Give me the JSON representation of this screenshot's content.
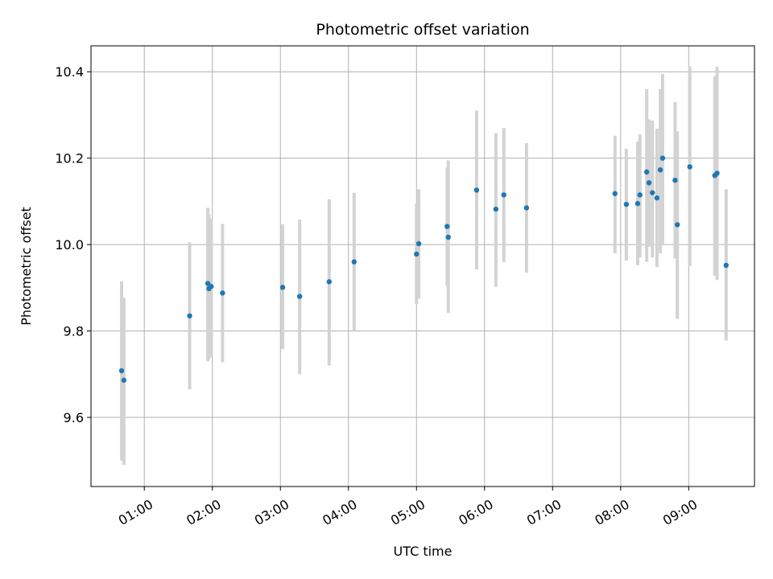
{
  "chart_data": {
    "type": "scatter",
    "title": "Photometric offset variation",
    "xlabel": "UTC time",
    "ylabel": "Photometric offset",
    "x_axis_kind": "time",
    "xlim": [
      "00:13",
      "09:58"
    ],
    "ylim": [
      9.44,
      10.46
    ],
    "x_ticks": [
      "01:00",
      "02:00",
      "03:00",
      "04:00",
      "05:00",
      "06:00",
      "07:00",
      "08:00",
      "09:00"
    ],
    "y_ticks": [
      9.6,
      9.8,
      10.0,
      10.2,
      10.4
    ],
    "y_tick_labels": [
      "9.6",
      "9.8",
      "10.0",
      "10.2",
      "10.4"
    ],
    "grid": true,
    "marker_color": "#1f77b4",
    "errorbar_color": "#d3d3d3",
    "series": [
      {
        "points": [
          {
            "t": "00:40",
            "y": 9.708,
            "lo": 9.5,
            "hi": 9.915
          },
          {
            "t": "00:42",
            "y": 9.686,
            "lo": 9.49,
            "hi": 9.877
          },
          {
            "t": "01:40",
            "y": 9.835,
            "lo": 9.665,
            "hi": 10.005
          },
          {
            "t": "01:56",
            "y": 9.91,
            "lo": 9.73,
            "hi": 10.085
          },
          {
            "t": "01:57",
            "y": 9.898,
            "lo": 9.735,
            "hi": 10.07
          },
          {
            "t": "01:59",
            "y": 9.903,
            "lo": 9.74,
            "hi": 10.06
          },
          {
            "t": "02:09",
            "y": 9.888,
            "lo": 9.728,
            "hi": 10.048
          },
          {
            "t": "03:02",
            "y": 9.901,
            "lo": 9.758,
            "hi": 10.047
          },
          {
            "t": "03:17",
            "y": 9.88,
            "lo": 9.7,
            "hi": 10.058
          },
          {
            "t": "03:43",
            "y": 9.914,
            "lo": 9.72,
            "hi": 10.105
          },
          {
            "t": "04:05",
            "y": 9.96,
            "lo": 9.8,
            "hi": 10.12
          },
          {
            "t": "05:00",
            "y": 9.978,
            "lo": 9.862,
            "hi": 10.095
          },
          {
            "t": "05:02",
            "y": 10.002,
            "lo": 9.875,
            "hi": 10.128
          },
          {
            "t": "05:27",
            "y": 10.042,
            "lo": 9.905,
            "hi": 10.178
          },
          {
            "t": "05:28",
            "y": 10.017,
            "lo": 9.842,
            "hi": 10.195
          },
          {
            "t": "05:53",
            "y": 10.126,
            "lo": 9.942,
            "hi": 10.31
          },
          {
            "t": "06:10",
            "y": 10.082,
            "lo": 9.902,
            "hi": 10.258
          },
          {
            "t": "06:17",
            "y": 10.115,
            "lo": 9.96,
            "hi": 10.27
          },
          {
            "t": "06:37",
            "y": 10.085,
            "lo": 9.935,
            "hi": 10.235
          },
          {
            "t": "07:55",
            "y": 10.118,
            "lo": 9.98,
            "hi": 10.252
          },
          {
            "t": "08:05",
            "y": 10.093,
            "lo": 9.963,
            "hi": 10.222
          },
          {
            "t": "08:15",
            "y": 10.095,
            "lo": 9.952,
            "hi": 10.238
          },
          {
            "t": "08:17",
            "y": 10.115,
            "lo": 9.97,
            "hi": 10.255
          },
          {
            "t": "08:23",
            "y": 10.168,
            "lo": 9.96,
            "hi": 10.36
          },
          {
            "t": "08:25",
            "y": 10.143,
            "lo": 9.995,
            "hi": 10.29
          },
          {
            "t": "08:28",
            "y": 10.12,
            "lo": 9.97,
            "hi": 10.287
          },
          {
            "t": "08:32",
            "y": 10.108,
            "lo": 9.948,
            "hi": 10.268
          },
          {
            "t": "08:35",
            "y": 10.173,
            "lo": 9.98,
            "hi": 10.36
          },
          {
            "t": "08:37",
            "y": 10.2,
            "lo": 10.0,
            "hi": 10.395
          },
          {
            "t": "08:48",
            "y": 10.149,
            "lo": 9.968,
            "hi": 10.33
          },
          {
            "t": "08:50",
            "y": 10.046,
            "lo": 9.828,
            "hi": 10.262
          },
          {
            "t": "09:01",
            "y": 10.18,
            "lo": 9.95,
            "hi": 10.412
          },
          {
            "t": "09:23",
            "y": 10.16,
            "lo": 9.928,
            "hi": 10.39
          },
          {
            "t": "09:25",
            "y": 10.165,
            "lo": 9.918,
            "hi": 10.412
          },
          {
            "t": "09:33",
            "y": 9.952,
            "lo": 9.778,
            "hi": 10.128
          }
        ]
      }
    ]
  }
}
